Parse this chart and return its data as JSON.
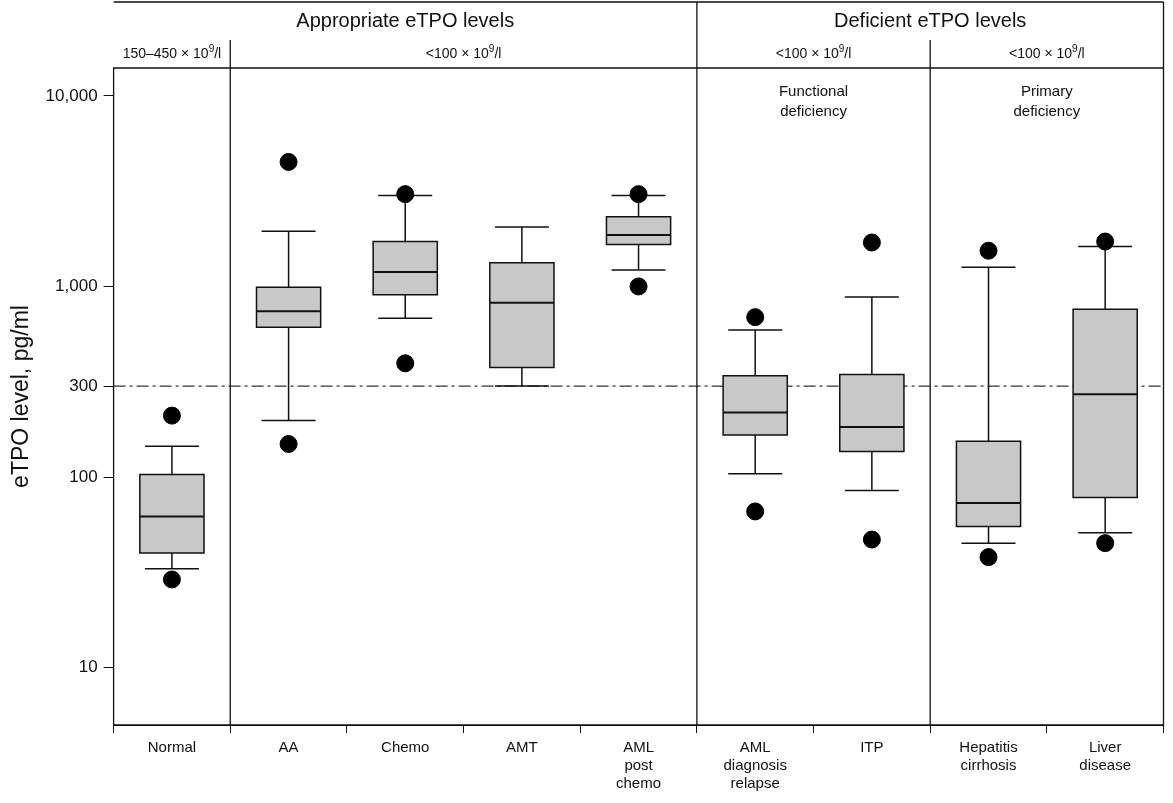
{
  "chart_data": {
    "type": "box",
    "ylabel": "eTPO level, pg/ml",
    "categories": [
      "Normal",
      "AA",
      "Chemo",
      "AMT",
      "AML post chemo",
      "AML diagnosis relapse",
      "ITP",
      "Hepatitis cirrhosis",
      "Liver disease"
    ],
    "series": [
      {
        "color": "#c8c8c8",
        "boxes": [
          {
            "low": 33,
            "q1": 40,
            "median": 62,
            "q3": 103,
            "high": 145,
            "outliers": [
              210,
              29
            ]
          },
          {
            "low": 198,
            "q1": 610,
            "median": 740,
            "q3": 990,
            "high": 1950,
            "outliers": [
              4500,
              149
            ]
          },
          {
            "low": 680,
            "q1": 905,
            "median": 1190,
            "q3": 1720,
            "high": 3000,
            "outliers": [
              3050,
              395
            ]
          },
          {
            "low": 300,
            "q1": 376,
            "median": 820,
            "q3": 1330,
            "high": 2050
          },
          {
            "low": 1220,
            "q1": 1660,
            "median": 1860,
            "q3": 2320,
            "high": 3000,
            "outliers": [
              3050,
              1000
            ]
          },
          {
            "low": 104,
            "q1": 166,
            "median": 218,
            "q3": 340,
            "high": 590,
            "outliers": [
              690,
              66
            ]
          },
          {
            "low": 85,
            "q1": 136,
            "median": 183,
            "q3": 345,
            "high": 880,
            "outliers": [
              1700,
              47
            ]
          },
          {
            "low": 45,
            "q1": 55,
            "median": 73,
            "q3": 154,
            "high": 1260,
            "outliers": [
              1540,
              38
            ]
          },
          {
            "low": 51,
            "q1": 78,
            "median": 272,
            "q3": 760,
            "high": 1620,
            "outliers": [
              1720,
              45
            ]
          }
        ]
      }
    ],
    "log": "y",
    "ylim": [
      5,
      14000
    ],
    "yticks": [
      10,
      100,
      300,
      {
        "value": 1000,
        "label": "1,000"
      },
      {
        "value": 10000,
        "label": "10,000"
      }
    ],
    "grid": false,
    "marker": "circle",
    "ref_lines": [
      {
        "axis": "y",
        "value": 300,
        "line_style": "dashed",
        "color": "#333333"
      }
    ],
    "annotations": [
      "Appropriate eTPO levels",
      "Deficient eTPO levels",
      "150–450 × 10$^{9}$/l",
      "<100 × 10$^{9}$/l",
      "<100 × 10$^{9}$/l",
      "<100 × 10$^{9}$/l",
      "Functional deficiency",
      "Primary deficiency"
    ]
  }
}
